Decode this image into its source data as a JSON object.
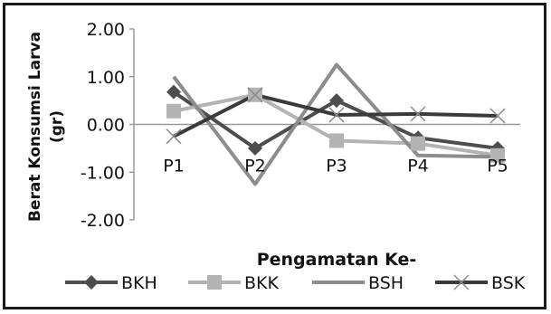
{
  "chart_data": {
    "type": "line",
    "categories": [
      "P1",
      "P2",
      "P3",
      "P4",
      "P5"
    ],
    "ylabel": "Berat Konsumsi Larva (gr)",
    "ylabel_lines": [
      "Berat Konsumsi Larva",
      "(gr)"
    ],
    "xlabel": "Pengamatan Ke-",
    "ylim": [
      -2.0,
      2.0
    ],
    "yticks": [
      "2.00",
      "1.00",
      "0.00",
      "-1.00",
      "-2.00"
    ],
    "ytick_values": [
      2,
      1,
      0,
      -1,
      -2
    ],
    "grid": false,
    "legend_position": "bottom",
    "series": [
      {
        "name": "BKH",
        "values": [
          0.68,
          -0.5,
          0.5,
          -0.28,
          -0.5
        ],
        "color": "#4d4d4d",
        "marker": "diamond"
      },
      {
        "name": "BKK",
        "values": [
          0.28,
          0.62,
          -0.34,
          -0.4,
          -0.65
        ],
        "color": "#b3b3b3",
        "marker": "square"
      },
      {
        "name": "BSH",
        "values": [
          1.0,
          -1.25,
          1.25,
          -0.65,
          -0.68
        ],
        "color": "#8c8c8c",
        "marker": "none"
      },
      {
        "name": "BSK",
        "values": [
          -0.25,
          0.62,
          0.2,
          0.22,
          0.18
        ],
        "color": "#3a3a3a",
        "marker": "x"
      }
    ]
  }
}
